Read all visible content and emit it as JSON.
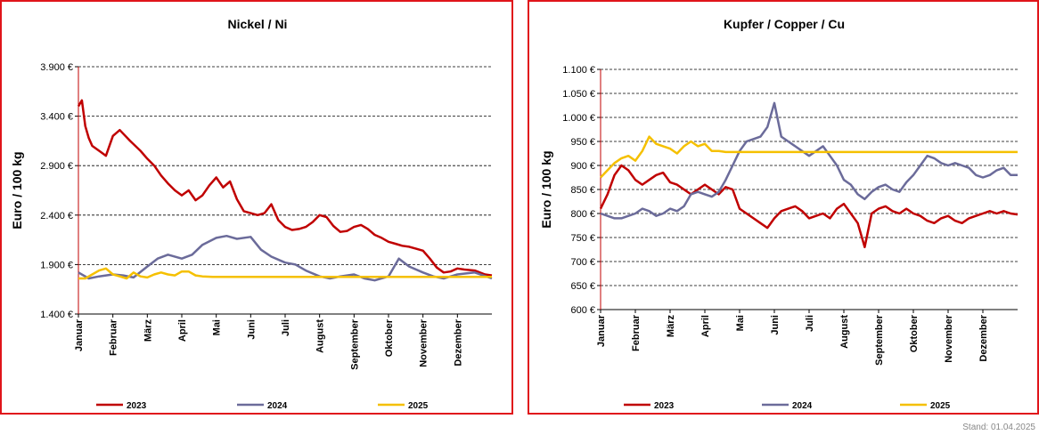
{
  "footer": {
    "stand": "Stand: 01.04.2025"
  },
  "colors": {
    "s2023": "#c00000",
    "s2024": "#6b6b9a",
    "s2025": "#f5c000",
    "frame": "#e0151b"
  },
  "chart_data": [
    {
      "type": "line",
      "title": "Nickel / Ni",
      "ylabel": "Euro / 100 kg",
      "ylim": [
        1400,
        3900
      ],
      "yticks": [
        1400,
        1900,
        2400,
        2900,
        3400,
        3900
      ],
      "ytick_labels": [
        "1.400 €",
        "1.900 €",
        "2.400 €",
        "2.900 €",
        "3.400 €",
        "3.900 €"
      ],
      "months": [
        "Januar",
        "Februar",
        "März",
        "April",
        "Mai",
        "Juni",
        "Juli",
        "August",
        "September",
        "Oktober",
        "November",
        "Dezember"
      ],
      "grid": true,
      "legend": "bottom",
      "series": [
        {
          "name": "2023",
          "x": [
            0,
            0.1,
            0.2,
            0.3,
            0.4,
            0.6,
            0.8,
            1.0,
            1.2,
            1.5,
            1.8,
            2.0,
            2.2,
            2.4,
            2.6,
            2.8,
            3.0,
            3.2,
            3.4,
            3.6,
            3.8,
            4.0,
            4.2,
            4.4,
            4.6,
            4.8,
            5.0,
            5.2,
            5.4,
            5.6,
            5.8,
            6.0,
            6.2,
            6.4,
            6.6,
            6.8,
            7.0,
            7.2,
            7.4,
            7.6,
            7.8,
            8.0,
            8.2,
            8.4,
            8.6,
            8.8,
            9.0,
            9.2,
            9.4,
            9.6,
            9.8,
            10.0,
            10.2,
            10.4,
            10.6,
            10.8,
            11.0,
            11.2,
            11.5,
            11.8,
            12.0
          ],
          "values": [
            3500,
            3560,
            3300,
            3180,
            3100,
            3050,
            3000,
            3200,
            3260,
            3150,
            3050,
            2970,
            2900,
            2800,
            2720,
            2650,
            2600,
            2650,
            2550,
            2600,
            2700,
            2780,
            2680,
            2740,
            2560,
            2440,
            2420,
            2400,
            2420,
            2510,
            2350,
            2280,
            2250,
            2260,
            2280,
            2330,
            2400,
            2380,
            2290,
            2230,
            2240,
            2280,
            2300,
            2260,
            2200,
            2170,
            2130,
            2110,
            2090,
            2080,
            2060,
            2040,
            1960,
            1870,
            1820,
            1830,
            1860,
            1850,
            1840,
            1800,
            1790
          ]
        },
        {
          "name": "2024",
          "x": [
            0,
            0.3,
            0.6,
            1.0,
            1.3,
            1.6,
            2.0,
            2.3,
            2.6,
            3.0,
            3.3,
            3.6,
            4.0,
            4.3,
            4.6,
            5.0,
            5.3,
            5.6,
            6.0,
            6.3,
            6.6,
            7.0,
            7.3,
            7.6,
            8.0,
            8.3,
            8.6,
            9.0,
            9.3,
            9.6,
            10.0,
            10.3,
            10.6,
            11.0,
            11.5,
            12.0
          ],
          "values": [
            1820,
            1760,
            1780,
            1800,
            1790,
            1770,
            1880,
            1960,
            2000,
            1960,
            2000,
            2100,
            2170,
            2190,
            2160,
            2180,
            2050,
            1980,
            1920,
            1900,
            1840,
            1780,
            1760,
            1780,
            1800,
            1760,
            1740,
            1780,
            1960,
            1880,
            1820,
            1780,
            1760,
            1800,
            1820,
            1760
          ]
        },
        {
          "name": "2025",
          "x": [
            0,
            0.2,
            0.4,
            0.6,
            0.8,
            1.0,
            1.2,
            1.4,
            1.6,
            1.8,
            2.0,
            2.2,
            2.4,
            2.6,
            2.8,
            3.0,
            3.2,
            3.4,
            3.6,
            3.9,
            4.0,
            6.0,
            8.0,
            10.0,
            12.0
          ],
          "values": [
            1760,
            1760,
            1800,
            1840,
            1860,
            1800,
            1780,
            1760,
            1820,
            1780,
            1770,
            1800,
            1820,
            1800,
            1790,
            1830,
            1830,
            1790,
            1780,
            1775,
            1775,
            1775,
            1775,
            1775,
            1775
          ]
        }
      ]
    },
    {
      "type": "line",
      "title": "Kupfer / Copper / Cu",
      "ylabel": "Euro / 100 kg",
      "ylim": [
        600,
        1100
      ],
      "yticks": [
        600,
        650,
        700,
        750,
        800,
        850,
        900,
        950,
        1000,
        1050,
        1100
      ],
      "ytick_labels": [
        "600 €",
        "650 €",
        "700 €",
        "750 €",
        "800 €",
        "850 €",
        "900 €",
        "950 €",
        "1.000 €",
        "1.050 €",
        "1.100 €"
      ],
      "months": [
        "Januar",
        "Februar",
        "März",
        "April",
        "Mai",
        "Juni",
        "Juli",
        "August",
        "September",
        "Oktober",
        "November",
        "Dezember"
      ],
      "grid": true,
      "legend": "bottom",
      "series": [
        {
          "name": "2023",
          "x": [
            0,
            0.2,
            0.4,
            0.6,
            0.8,
            1.0,
            1.2,
            1.4,
            1.6,
            1.8,
            2.0,
            2.2,
            2.4,
            2.6,
            2.8,
            3.0,
            3.2,
            3.4,
            3.6,
            3.8,
            4.0,
            4.2,
            4.4,
            4.6,
            4.8,
            5.0,
            5.2,
            5.4,
            5.6,
            5.8,
            6.0,
            6.2,
            6.4,
            6.6,
            6.8,
            7.0,
            7.2,
            7.4,
            7.6,
            7.8,
            8.0,
            8.2,
            8.4,
            8.6,
            8.8,
            9.0,
            9.2,
            9.4,
            9.6,
            9.8,
            10.0,
            10.2,
            10.4,
            10.6,
            10.8,
            11.0,
            11.2,
            11.4,
            11.6,
            11.8,
            12.0
          ],
          "values": [
            810,
            840,
            880,
            900,
            890,
            870,
            860,
            870,
            880,
            885,
            865,
            860,
            850,
            840,
            850,
            860,
            850,
            840,
            855,
            850,
            810,
            800,
            790,
            780,
            770,
            790,
            805,
            810,
            815,
            805,
            790,
            795,
            800,
            790,
            810,
            820,
            800,
            780,
            730,
            800,
            810,
            815,
            805,
            800,
            810,
            800,
            795,
            785,
            780,
            790,
            795,
            785,
            780,
            790,
            795,
            800,
            805,
            800,
            805,
            800,
            798
          ]
        },
        {
          "name": "2024",
          "x": [
            0,
            0.2,
            0.4,
            0.6,
            0.8,
            1.0,
            1.2,
            1.4,
            1.6,
            1.8,
            2.0,
            2.2,
            2.4,
            2.6,
            2.8,
            3.0,
            3.2,
            3.4,
            3.6,
            3.8,
            4.0,
            4.2,
            4.4,
            4.6,
            4.8,
            5.0,
            5.2,
            5.4,
            5.6,
            5.8,
            6.0,
            6.2,
            6.4,
            6.6,
            6.8,
            7.0,
            7.2,
            7.4,
            7.6,
            7.8,
            8.0,
            8.2,
            8.4,
            8.6,
            8.8,
            9.0,
            9.2,
            9.4,
            9.6,
            9.8,
            10.0,
            10.2,
            10.4,
            10.6,
            10.8,
            11.0,
            11.2,
            11.4,
            11.6,
            11.8,
            12.0
          ],
          "values": [
            800,
            795,
            790,
            790,
            795,
            800,
            810,
            805,
            795,
            800,
            810,
            805,
            815,
            840,
            845,
            840,
            835,
            845,
            870,
            900,
            930,
            950,
            955,
            960,
            980,
            1030,
            960,
            950,
            940,
            930,
            920,
            930,
            940,
            920,
            900,
            870,
            860,
            840,
            830,
            845,
            855,
            860,
            850,
            845,
            865,
            880,
            900,
            920,
            915,
            905,
            900,
            905,
            900,
            895,
            880,
            875,
            880,
            890,
            895,
            880,
            880
          ]
        },
        {
          "name": "2025",
          "x": [
            0,
            0.2,
            0.4,
            0.6,
            0.8,
            1.0,
            1.2,
            1.4,
            1.6,
            1.8,
            2.0,
            2.2,
            2.4,
            2.6,
            2.8,
            3.0,
            3.2,
            3.4,
            3.6,
            3.9,
            4.0,
            6.0,
            8.0,
            10.0,
            12.0
          ],
          "values": [
            875,
            890,
            905,
            915,
            920,
            910,
            930,
            960,
            945,
            940,
            935,
            925,
            940,
            950,
            940,
            945,
            930,
            930,
            928,
            928,
            928,
            928,
            928,
            928,
            928
          ]
        }
      ]
    }
  ]
}
